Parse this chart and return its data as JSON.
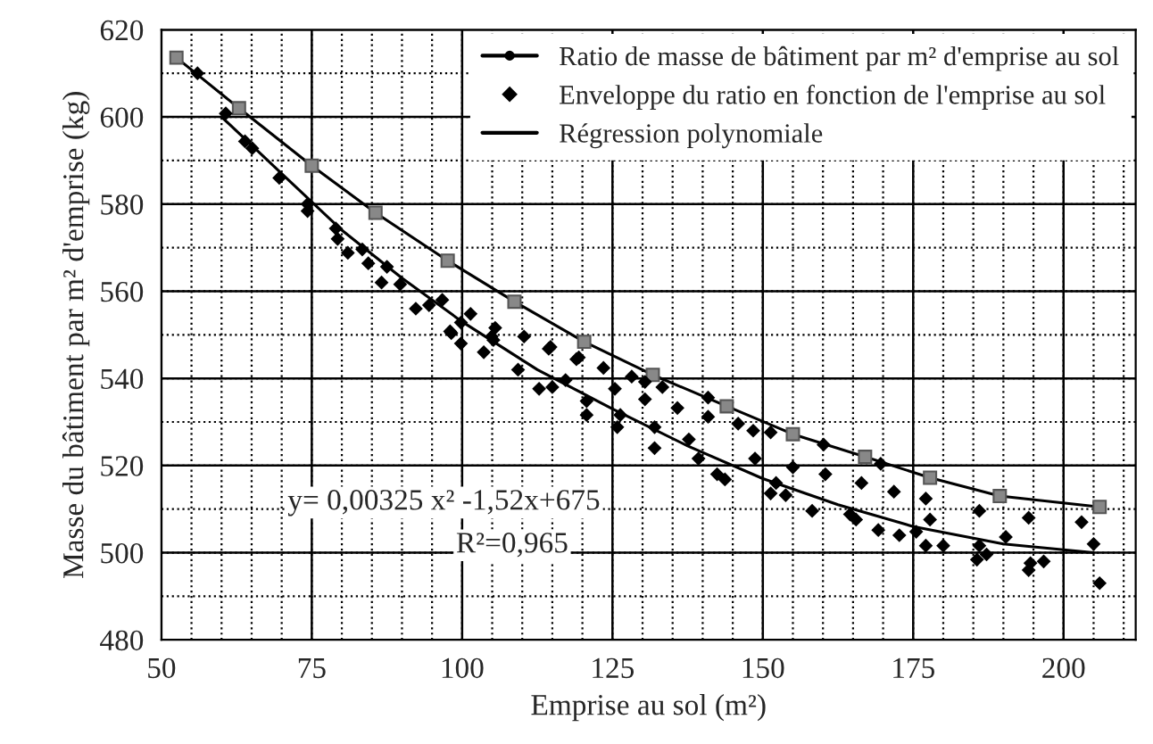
{
  "chart_data": {
    "type": "scatter",
    "xlabel": "Emprise au sol (m²)",
    "ylabel": "Masse du bâtiment par m² d'emprise (kg)",
    "xlim": [
      50,
      212
    ],
    "ylim": [
      480,
      620
    ],
    "xticks": [
      50,
      75,
      100,
      125,
      150,
      175,
      200
    ],
    "yticks": [
      480,
      500,
      520,
      540,
      560,
      580,
      600,
      620
    ],
    "grid": true,
    "legend": "top right",
    "series": [
      {
        "name": "Ratio de masse de bâtiment par m² d'emprise au sol",
        "type": "line",
        "marker": "square",
        "color": "#000000",
        "x": [
          52.5,
          62.9,
          75,
          85.6,
          97.6,
          108.7,
          120.3,
          131.7,
          144,
          155,
          167,
          177.8,
          189.4,
          206
        ],
        "values": [
          613.6,
          602,
          588.8,
          578,
          567,
          557.6,
          548.4,
          540.8,
          533.6,
          527.2,
          522,
          517.2,
          513,
          510.5
        ]
      },
      {
        "name": "Enveloppe du ratio en fonction de l'emprise au sol",
        "marker": "diamond",
        "color": "#000000",
        "x": [
          56,
          60.7,
          63.9,
          65.1,
          69.6,
          74.3,
          74.3,
          79,
          79.3,
          81,
          83.4,
          84.4,
          86.6,
          87.5,
          89.7,
          92.3,
          94.5,
          96.7,
          98.2,
          99.8,
          101.4,
          99.8,
          105.5,
          104.9,
          110.3,
          114.7,
          98,
          103.6,
          105.2,
          109.3,
          112.8,
          114.4,
          115,
          117.2,
          119.4,
          120.7,
          120.7,
          119,
          123.5,
          125.4,
          126.3,
          125.8,
          128.2,
          130.4,
          130.4,
          132,
          132,
          133.3,
          135.8,
          137.7,
          139.3,
          140.9,
          140.9,
          142.4,
          143.7,
          145.9,
          148.4,
          148.7,
          151.3,
          152.2,
          151.3,
          153.8,
          155,
          158.2,
          160.1,
          160.4,
          164.5,
          165.5,
          166.4,
          169.2,
          169.6,
          171.8,
          172.7,
          175.5,
          177.1,
          177.8,
          177.1,
          180,
          186,
          186,
          185.6,
          187.2,
          190.4,
          194.2,
          194.2,
          194.5,
          196.7,
          203,
          205,
          206
        ],
        "values": [
          610,
          600.8,
          594.4,
          592.8,
          586,
          580,
          578.4,
          574.4,
          572,
          568.8,
          569.6,
          566.4,
          562,
          565.6,
          561.6,
          556,
          556.8,
          558,
          550.4,
          552.8,
          554.8,
          548,
          551.6,
          549.6,
          549.6,
          547.2,
          550.8,
          546,
          548.8,
          542,
          537.6,
          546.8,
          538,
          539.6,
          544.8,
          534.8,
          531.6,
          544.4,
          542.4,
          537.6,
          531.6,
          528.8,
          540.4,
          539.2,
          535.2,
          528.8,
          524,
          538,
          533.2,
          526,
          521.6,
          535.6,
          531.2,
          518,
          516.8,
          529.6,
          528,
          521.6,
          527.6,
          516,
          513.6,
          513.2,
          519.6,
          509.6,
          524.8,
          518,
          508.8,
          507.6,
          516,
          505.2,
          520.4,
          514,
          504,
          504.8,
          512.4,
          507.6,
          501.6,
          501.6,
          509.6,
          501.6,
          498.4,
          499.6,
          503.6,
          508,
          496,
          497.6,
          498,
          507,
          502,
          493
        ]
      },
      {
        "name": "Régression polynomiale",
        "type": "line",
        "marker": "none",
        "color": "#000000",
        "x": [
          60,
          70,
          80,
          90,
          100,
          112.5,
          125,
          137.5,
          150,
          162.5,
          175,
          190,
          205
        ],
        "values": [
          600,
          587,
          574,
          563,
          553,
          542,
          533,
          524.5,
          517,
          511,
          506,
          502,
          500
        ]
      }
    ],
    "annotations": [
      "y= 0,00325 x² -1,52x+675",
      "R²=0,965"
    ]
  }
}
